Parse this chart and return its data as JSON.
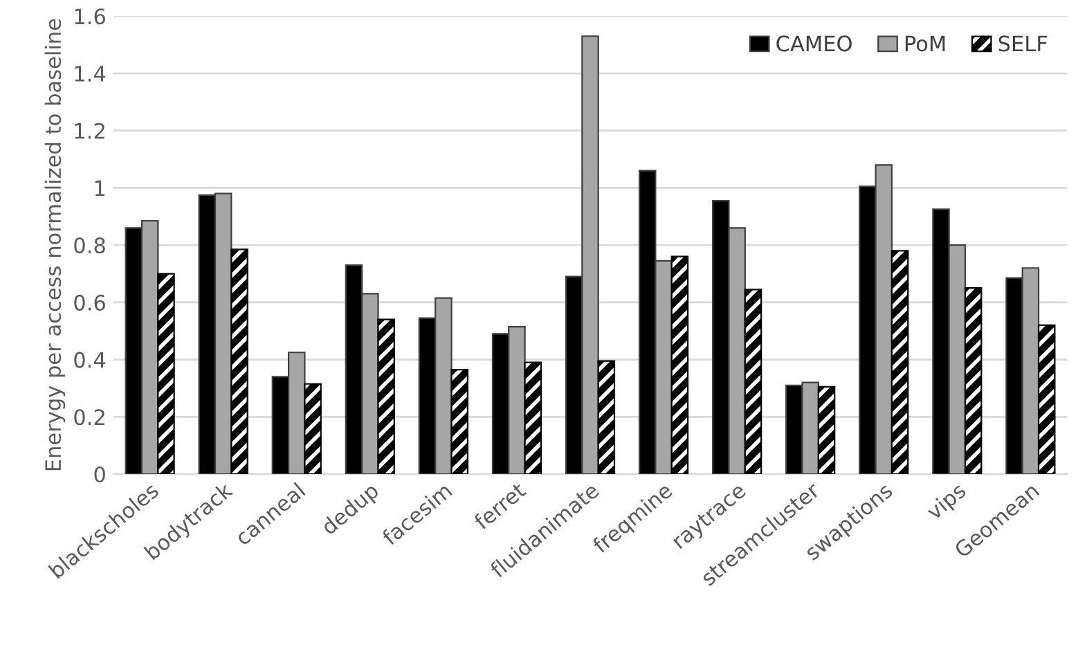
{
  "chart_data": {
    "type": "bar",
    "ylabel": "Enerygy per access normalized to baseline",
    "categories": [
      "blackscholes",
      "bodytrack",
      "canneal",
      "dedup",
      "facesim",
      "ferret",
      "fluidanimate",
      "freqmine",
      "raytrace",
      "streamcluster",
      "swaptions",
      "vips",
      "Geomean"
    ],
    "series": [
      {
        "name": "CAMEO",
        "color": "#000000",
        "values": [
          0.86,
          0.975,
          0.34,
          0.73,
          0.545,
          0.49,
          0.69,
          1.06,
          0.955,
          0.31,
          1.005,
          0.925,
          0.685
        ]
      },
      {
        "name": "PoM",
        "color": "#a6a6a6",
        "values": [
          0.885,
          0.98,
          0.425,
          0.63,
          0.615,
          0.515,
          1.53,
          0.745,
          0.86,
          0.32,
          1.08,
          0.8,
          0.72
        ]
      },
      {
        "name": "SELF",
        "color": "#000000",
        "values": [
          0.7,
          0.785,
          0.315,
          0.54,
          0.365,
          0.39,
          0.395,
          0.76,
          0.645,
          0.305,
          0.78,
          0.65,
          0.52
        ]
      }
    ],
    "ylim": [
      0,
      1.6
    ],
    "yticks": [
      0,
      0.2,
      0.4,
      0.6,
      0.8,
      1,
      1.2,
      1.4,
      1.6
    ],
    "grid": "y",
    "legend": "top right"
  }
}
